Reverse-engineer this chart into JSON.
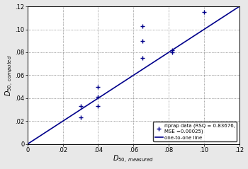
{
  "title": "",
  "xlabel": "$D_{50,\\ measured}$",
  "ylabel": "$D_{50,\\ computed}$",
  "xlim": [
    0,
    0.12
  ],
  "ylim": [
    0,
    0.12
  ],
  "xticks": [
    0,
    0.02,
    0.04,
    0.06,
    0.08,
    0.1,
    0.12
  ],
  "yticks": [
    0,
    0.02,
    0.04,
    0.06,
    0.08,
    0.1,
    0.12
  ],
  "scatter_x": [
    0.03,
    0.03,
    0.04,
    0.04,
    0.04,
    0.065,
    0.065,
    0.065,
    0.082,
    0.082,
    0.1
  ],
  "scatter_y": [
    0.023,
    0.033,
    0.041,
    0.05,
    0.033,
    0.075,
    0.103,
    0.09,
    0.08,
    0.082,
    0.115
  ],
  "line_x": [
    0,
    0.12
  ],
  "line_y": [
    0,
    0.12
  ],
  "marker_color": "#00008B",
  "line_color": "#00008B",
  "legend_text1": "riprap data (RSQ = 0.83676,\nMSE =0.00025)",
  "legend_text2": "one-to-one line",
  "plot_bg_color": "#ffffff",
  "fig_bg_color": "#e8e8e8",
  "grid_color": "#555555",
  "tick_fontsize": 6,
  "label_fontsize": 7,
  "legend_fontsize": 5
}
